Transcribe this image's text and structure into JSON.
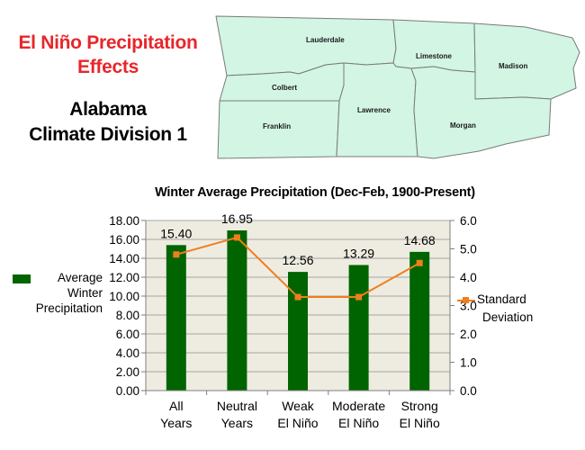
{
  "header": {
    "title_line1": "El Niño Precipitation",
    "title_line2": "Effects",
    "region_line1": "Alabama",
    "region_line2": "Climate Division 1"
  },
  "map": {
    "fill_color": "#d2f5e4",
    "stroke_color": "#7a7a7a",
    "counties": [
      "Lauderdale",
      "Limestone",
      "Madison",
      "Colbert",
      "Lawrence",
      "Morgan",
      "Franklin"
    ]
  },
  "chart_data": {
    "type": "bar",
    "title": "Winter Average Precipitation (Dec-Feb, 1900-Present)",
    "categories": [
      [
        "All",
        "Years"
      ],
      [
        "Neutral",
        "Years"
      ],
      [
        "Weak",
        "El Niño"
      ],
      [
        "Moderate",
        "El Niño"
      ],
      [
        "Strong",
        "El Niño"
      ]
    ],
    "series": [
      {
        "name": "Average Winter Precipitation",
        "name_lines": [
          "Average",
          "Winter",
          "Precipitation"
        ],
        "type": "bar",
        "axis": "left",
        "color": "#006400",
        "values": [
          15.4,
          16.95,
          12.56,
          13.29,
          14.68
        ],
        "data_labels": [
          "15.40",
          "16.95",
          "12.56",
          "13.29",
          "14.68"
        ]
      },
      {
        "name": "Standard Deviation",
        "name_lines": [
          "Standard",
          "Deviation"
        ],
        "type": "line",
        "axis": "right",
        "color": "#f07e1c",
        "values": [
          4.8,
          5.4,
          3.3,
          3.3,
          4.5
        ]
      }
    ],
    "y_left": {
      "min": 0,
      "max": 18,
      "step": 2,
      "tick_labels": [
        "0.00",
        "2.00",
        "4.00",
        "6.00",
        "8.00",
        "10.00",
        "12.00",
        "14.00",
        "16.00",
        "18.00"
      ]
    },
    "y_right": {
      "min": 0,
      "max": 6,
      "step": 1,
      "tick_labels": [
        "0.0",
        "1.0",
        "2.0",
        "3.0",
        "4.0",
        "5.0",
        "6.0"
      ]
    },
    "plot_background": "#eeece1",
    "grid": true,
    "legend_left": "left",
    "legend_right": "right"
  }
}
